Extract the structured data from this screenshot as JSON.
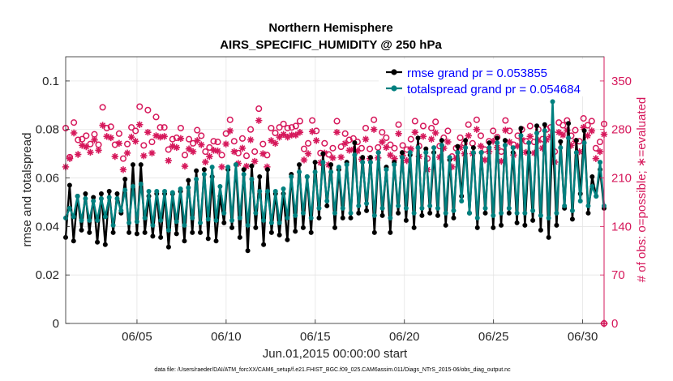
{
  "chart_data": {
    "type": "line",
    "title": "Northern Hemisphere",
    "subtitle": "AIRS_SPECIFIC_HUMIDITY @ 250 hPa",
    "xlabel": "Jun.01,2015 00:00:00 start",
    "ylabel": "rmse and totalspread",
    "y2label": "# of obs: o=possible; ∗=evaluated",
    "xlim": [
      1,
      31.2
    ],
    "ylim": [
      0,
      0.11
    ],
    "y2lim": [
      0,
      385
    ],
    "x_ticks": [
      "06/05",
      "06/10",
      "06/15",
      "06/20",
      "06/25",
      "06/30"
    ],
    "x_tick_days": [
      5,
      10,
      15,
      20,
      25,
      30
    ],
    "y_ticks": [
      "0",
      "0.02",
      "0.04",
      "0.06",
      "0.08",
      "0.1"
    ],
    "y2_ticks": [
      "0",
      "70",
      "140",
      "210",
      "280",
      "350"
    ],
    "grid": true,
    "legend_position": "top-right",
    "series": [
      {
        "name": "rmse grand pr = 0.053855",
        "color": "#000000",
        "axis": "left",
        "values": [
          0.0355,
          0.057,
          0.034,
          0.0525,
          0.0385,
          0.0535,
          0.0375,
          0.052,
          0.0335,
          0.0535,
          0.0325,
          0.0545,
          0.0375,
          0.0535,
          0.0455,
          0.0595,
          0.0375,
          0.0655,
          0.037,
          0.0655,
          0.0375,
          0.0525,
          0.036,
          0.0535,
          0.0355,
          0.0535,
          0.0315,
          0.0535,
          0.037,
          0.0545,
          0.034,
          0.059,
          0.0375,
          0.063,
          0.0375,
          0.0635,
          0.035,
          0.0605,
          0.034,
          0.0525,
          0.0415,
          0.0635,
          0.0395,
          0.0655,
          0.0355,
          0.0635,
          0.03,
          0.065,
          0.0395,
          0.0605,
          0.0325,
          0.0635,
          0.0375,
          0.0535,
          0.0365,
          0.0535,
          0.0345,
          0.0615,
          0.038,
          0.0655,
          0.0395,
          0.0605,
          0.0375,
          0.0665,
          0.0435,
          0.07,
          0.0485,
          0.0655,
          0.0395,
          0.0635,
          0.0435,
          0.0665,
          0.0435,
          0.0745,
          0.0455,
          0.0685,
          0.0465,
          0.0685,
          0.0375,
          0.0705,
          0.0445,
          0.0645,
          0.0375,
          0.0665,
          0.0455,
          0.0705,
          0.0425,
          0.0695,
          0.0395,
          0.0765,
          0.0445,
          0.072,
          0.0455,
          0.0705,
          0.0445,
          0.0755,
          0.0405,
          0.0675,
          0.0435,
          0.073,
          0.0525,
          0.0755,
          0.0455,
          0.0725,
          0.0395,
          0.0705,
          0.0455,
          0.0745,
          0.0395,
          0.0765,
          0.0405,
          0.0755,
          0.0455,
          0.0705,
          0.0415,
          0.0805,
          0.0405,
          0.0705,
          0.0425,
          0.0815,
          0.0385,
          0.082,
          0.0355,
          0.079,
          0.0405,
          0.075,
          0.0475,
          0.0825,
          0.043,
          0.0755,
          0.0535,
          0.0795,
          0.0455,
          0.0605,
          0.0525,
          0.0635,
          0.0475
        ],
        "marker": "filled-circle"
      },
      {
        "name": "totalspread grand pr = 0.054684",
        "color": "#00807f",
        "axis": "left",
        "values": [
          0.0435,
          0.0475,
          0.044,
          0.0525,
          0.0425,
          0.0515,
          0.0425,
          0.0505,
          0.0425,
          0.0515,
          0.044,
          0.052,
          0.0405,
          0.0515,
          0.0465,
          0.055,
          0.0415,
          0.0565,
          0.042,
          0.0575,
          0.0435,
          0.0545,
          0.0405,
          0.0545,
          0.0425,
          0.0545,
          0.0385,
          0.054,
          0.042,
          0.0555,
          0.0405,
          0.056,
          0.0435,
          0.0595,
          0.0415,
          0.0615,
          0.043,
          0.0645,
          0.0425,
          0.0565,
          0.0455,
          0.0645,
          0.0425,
          0.0655,
          0.0435,
          0.0615,
          0.0405,
          0.0595,
          0.0455,
          0.0545,
          0.0425,
          0.0545,
          0.0415,
          0.0545,
          0.0415,
          0.0555,
          0.0435,
          0.0605,
          0.0445,
          0.0625,
          0.0455,
          0.0605,
          0.0435,
          0.0625,
          0.0475,
          0.0665,
          0.0505,
          0.0625,
          0.0455,
          0.0645,
          0.0475,
          0.0655,
          0.0455,
          0.0695,
          0.0485,
          0.0665,
          0.0495,
          0.0665,
          0.0445,
          0.0705,
          0.0475,
          0.0635,
          0.0435,
          0.0655,
          0.0485,
          0.0685,
          0.0475,
          0.0705,
          0.0455,
          0.0725,
          0.0475,
          0.0705,
          0.0485,
          0.0725,
          0.0475,
          0.0735,
          0.0455,
          0.0685,
          0.0465,
          0.0705,
          0.0505,
          0.0725,
          0.0455,
          0.0705,
          0.0435,
          0.0705,
          0.0475,
          0.0725,
          0.0445,
          0.0745,
          0.0455,
          0.0735,
          0.0475,
          0.0725,
          0.0455,
          0.0775,
          0.0455,
          0.0745,
          0.0465,
          0.0785,
          0.0445,
          0.0795,
          0.0435,
          0.0915,
          0.0455,
          0.0725,
          0.0485,
          0.0765,
          0.0465,
          0.0705,
          0.0505,
          0.0745,
          0.0485,
          0.0565,
          0.0525,
          0.0665,
          0.0485
        ],
        "marker": "filled-circle"
      },
      {
        "name": "obs possible",
        "color": "#d6185b",
        "axis": "right",
        "marker": "open-circle",
        "values": [
          282,
          240,
          290,
          265,
          266,
          271,
          259,
          273,
          258,
          312,
          282,
          284,
          258,
          274,
          238,
          259,
          283,
          278,
          313,
          257,
          308,
          262,
          298,
          283,
          283,
          251,
          266,
          268,
          282,
          243,
          266,
          260,
          279,
          271,
          248,
          254,
          263,
          262,
          243,
          274,
          294,
          263,
          246,
          267,
          242,
          280,
          248,
          310,
          259,
          243,
          282,
          275,
          283,
          288,
          282,
          283,
          285,
          292,
          252,
          260,
          293,
          278,
          246,
          260,
          244,
          253,
          292,
          255,
          274,
          265,
          267,
          262,
          253,
          282,
          252,
          294,
          254,
          276,
          268,
          258,
          253,
          287,
          257,
          251,
          266,
          292,
          256,
          285,
          238,
          282,
          291,
          256,
          268,
          278,
          241,
          253,
          268,
          260,
          287,
          260,
          294,
          271,
          251,
          263,
          278,
          269,
          248,
          293,
          278,
          258,
          271,
          280,
          263,
          285,
          262,
          280,
          266,
          280,
          283,
          248,
          290,
          286,
          293,
          271,
          279,
          263,
          296,
          286,
          292,
          253,
          262,
          288
        ]
      },
      {
        "name": "obs evaluated",
        "color": "#d6185b",
        "axis": "right",
        "marker": "asterisk",
        "values": [
          226,
          238,
          275,
          244,
          257,
          255,
          247,
          265,
          250,
          286,
          270,
          268,
          241,
          260,
          222,
          246,
          269,
          263,
          287,
          242,
          276,
          246,
          271,
          269,
          270,
          235,
          256,
          254,
          267,
          227,
          252,
          248,
          264,
          258,
          233,
          241,
          250,
          249,
          226,
          259,
          278,
          248,
          231,
          253,
          227,
          265,
          234,
          293,
          245,
          226,
          264,
          260,
          269,
          273,
          269,
          272,
          272,
          276,
          236,
          245,
          277,
          264,
          232,
          246,
          229,
          239,
          276,
          240,
          260,
          250,
          251,
          249,
          237,
          266,
          238,
          280,
          239,
          262,
          254,
          243,
          238,
          274,
          242,
          235,
          252,
          276,
          241,
          270,
          222,
          266,
          275,
          240,
          253,
          262,
          226,
          238,
          254,
          245,
          271,
          245,
          280,
          256,
          236,
          248,
          263,
          254,
          234,
          279,
          262,
          243,
          256,
          265,
          247,
          270,
          246,
          264,
          253,
          265,
          270,
          233,
          276,
          272,
          279,
          257,
          263,
          248,
          283,
          271,
          278,
          238,
          248,
          273
        ]
      }
    ]
  },
  "footnote": "data file: /Users/raeder/DAI/ATM_forcXX/CAM6_setup/f.e21.FHIST_BGC.f09_025.CAM6assim.011/Diags_NTrS_2015-06/obs_diag_output.nc"
}
